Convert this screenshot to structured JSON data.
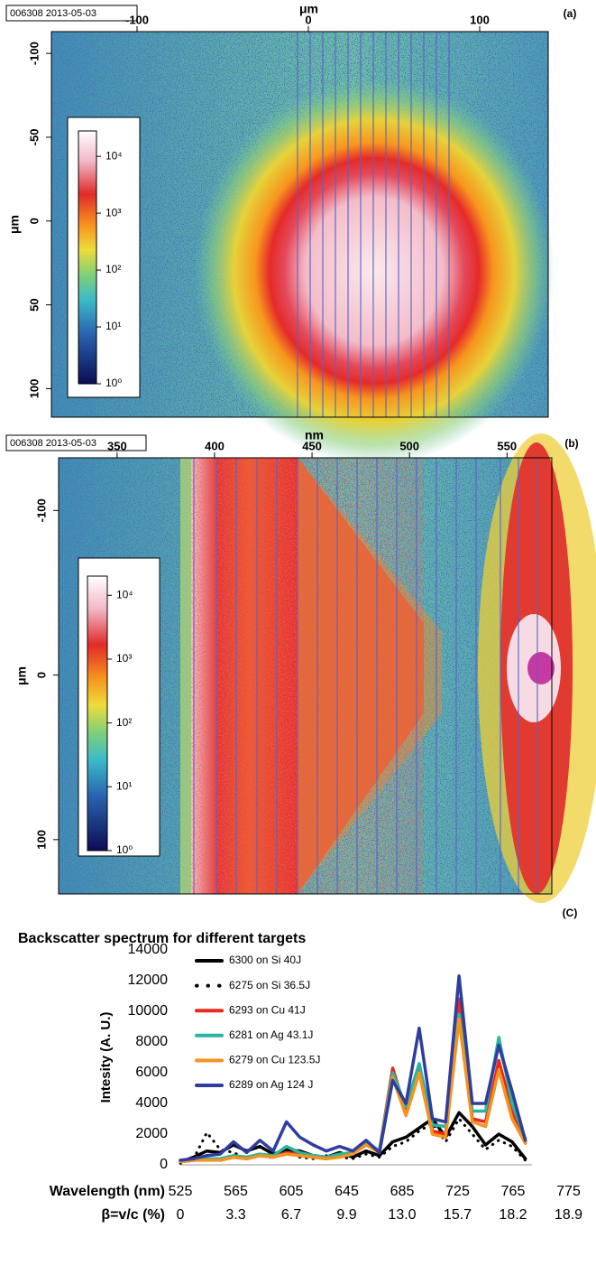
{
  "chart_data": [
    {
      "type": "image",
      "panel_label": "(a)",
      "stamp": "006308 2013-05-03",
      "xlabel": "μm",
      "ylabel": "μm",
      "xlim": [
        -150,
        140
      ],
      "xticks": [
        -100,
        0,
        100
      ],
      "ylim": [
        -113,
        117
      ],
      "yticks": [
        -100,
        -50,
        0,
        50,
        100
      ],
      "colorbar": {
        "scale": "log",
        "clim": [
          1,
          28000
        ],
        "ticks": [
          {
            "value": 1,
            "label": "10⁰"
          },
          {
            "value": 10,
            "label": "10¹"
          },
          {
            "value": 100,
            "label": "10²"
          },
          {
            "value": 1000,
            "label": "10³"
          },
          {
            "value": 10000,
            "label": "10⁴"
          }
        ]
      }
    },
    {
      "type": "image",
      "panel_label": "(b)",
      "stamp": "006308 2013-05-03",
      "xlabel": "nm",
      "ylabel": "μm",
      "xlim": [
        320,
        573
      ],
      "xticks": [
        350,
        400,
        450,
        500,
        550
      ],
      "ylim": [
        -132,
        133
      ],
      "yticks": [
        -100,
        0,
        100
      ],
      "colorbar": {
        "scale": "log",
        "clim": [
          1,
          20000
        ],
        "ticks": [
          {
            "value": 1,
            "label": "10⁰"
          },
          {
            "value": 10,
            "label": "10¹"
          },
          {
            "value": 100,
            "label": "10²"
          },
          {
            "value": 1000,
            "label": "10³"
          },
          {
            "value": 10000,
            "label": "10⁴"
          }
        ]
      }
    },
    {
      "type": "line",
      "panel_label": "(C)",
      "title": "Backscatter spectrum for different targets",
      "ylabel": "Intesity (A. U.)",
      "x_title": "Wavelength (nm)",
      "beta_title": "β=v/c (%)",
      "x_categories": [
        "525",
        "565",
        "605",
        "645",
        "685",
        "725",
        "765",
        "775"
      ],
      "beta_categories": [
        "0",
        "3.3",
        "6.7",
        "9.9",
        "13.0",
        "15.7",
        "18.2",
        "18.9"
      ],
      "x": [
        525,
        535,
        545,
        555,
        565,
        575,
        585,
        595,
        605,
        615,
        625,
        635,
        645,
        655,
        665,
        675,
        685,
        695,
        705,
        715,
        725,
        735,
        745,
        755,
        765,
        775,
        785
      ],
      "xlim": [
        525,
        790
      ],
      "ylim": [
        0,
        14000
      ],
      "yticks": [
        0,
        2000,
        4000,
        6000,
        8000,
        10000,
        12000,
        14000
      ],
      "series": [
        {
          "name": "6300 on Si 40J",
          "color": "#000000",
          "style": "solid",
          "values": [
            200,
            500,
            900,
            800,
            1300,
            900,
            1200,
            700,
            1000,
            900,
            600,
            500,
            800,
            500,
            900,
            600,
            1500,
            1800,
            2400,
            3000,
            1800,
            3400,
            2500,
            1300,
            2000,
            1500,
            400
          ]
        },
        {
          "name": "6275 on Si 36.5J",
          "color": "#000000",
          "style": "dotted",
          "values": [
            100,
            400,
            2100,
            1000,
            800,
            400,
            700,
            600,
            900,
            500,
            400,
            600,
            500,
            400,
            700,
            500,
            1200,
            1500,
            2200,
            2700,
            1500,
            3000,
            2000,
            1000,
            1600,
            1200,
            300
          ]
        },
        {
          "name": "6293 on Cu 41J",
          "color": "#e8291c",
          "style": "solid",
          "values": [
            200,
            300,
            400,
            300,
            500,
            400,
            600,
            500,
            800,
            700,
            500,
            400,
            600,
            800,
            1400,
            900,
            6300,
            3500,
            6500,
            2200,
            2000,
            10800,
            3000,
            2800,
            6800,
            3500,
            1500
          ]
        },
        {
          "name": "6281 on Ag 43.1J",
          "color": "#2ab5a0",
          "style": "solid",
          "values": [
            200,
            300,
            400,
            400,
            600,
            500,
            700,
            600,
            1200,
            800,
            600,
            500,
            700,
            800,
            1500,
            900,
            6000,
            3800,
            6600,
            2600,
            2500,
            9800,
            3500,
            3500,
            8300,
            4000,
            1700
          ]
        },
        {
          "name": "6279 on Cu 123.5J",
          "color": "#f7921e",
          "style": "solid",
          "values": [
            200,
            300,
            300,
            300,
            500,
            400,
            600,
            500,
            700,
            600,
            500,
            400,
            500,
            700,
            1300,
            800,
            5700,
            3200,
            6000,
            2000,
            1800,
            9500,
            2800,
            2500,
            6200,
            3000,
            1400
          ]
        },
        {
          "name": "6289 on Ag 124 J",
          "color": "#2e3d9e",
          "style": "solid",
          "values": [
            300,
            400,
            600,
            700,
            1500,
            800,
            1600,
            900,
            2800,
            1800,
            1300,
            900,
            1200,
            900,
            1600,
            800,
            5500,
            4000,
            8900,
            3000,
            2800,
            12300,
            4000,
            4000,
            7800,
            4800,
            1600
          ]
        }
      ]
    }
  ]
}
